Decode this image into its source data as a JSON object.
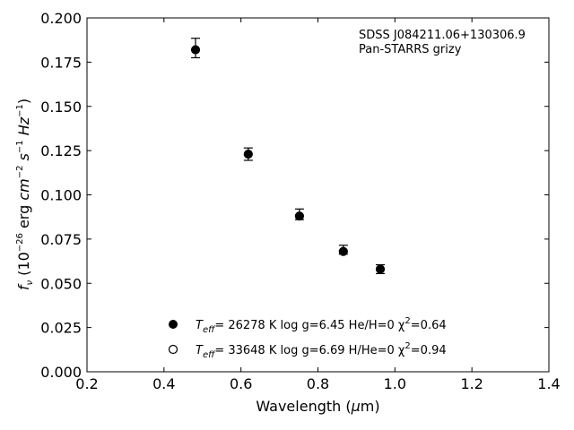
{
  "chart_data": {
    "type": "scatter",
    "xlabel_prefix": "Wavelength (",
    "xlabel_mu": "μ",
    "xlabel_suffix": "m)",
    "ylabel": {
      "f": "f",
      "nu": "ν",
      "open": " (10",
      "exp1": "−26",
      "erg": " erg ",
      "cm": "cm",
      "exp2": "−2",
      "s": " s",
      "exp3": "−1",
      "hz": " Hz",
      "exp4": "−1",
      "close": ")"
    },
    "xlim": [
      0.2,
      1.4
    ],
    "ylim": [
      0.0,
      0.2
    ],
    "xticks": [
      "0.2",
      "0.4",
      "0.6",
      "0.8",
      "1.0",
      "1.2",
      "1.4"
    ],
    "xtick_values": [
      0.2,
      0.4,
      0.6,
      0.8,
      1.0,
      1.2,
      1.4
    ],
    "yticks": [
      "0.000",
      "0.025",
      "0.050",
      "0.075",
      "0.100",
      "0.125",
      "0.150",
      "0.175",
      "0.200"
    ],
    "ytick_values": [
      0.0,
      0.025,
      0.05,
      0.075,
      0.1,
      0.125,
      0.15,
      0.175,
      0.2
    ],
    "annotation": [
      "SDSS J084211.06+130306.9",
      "Pan-STARRS grizy"
    ],
    "observed": {
      "x": [
        0.482,
        0.619,
        0.752,
        0.866,
        0.962
      ],
      "y": [
        0.183,
        0.123,
        0.089,
        0.069,
        0.058
      ],
      "yerr": [
        0.0055,
        0.0035,
        0.003,
        0.0025,
        0.0025
      ]
    },
    "series": [
      {
        "marker": "filled",
        "x": [
          0.482,
          0.619,
          0.752,
          0.866,
          0.962
        ],
        "y": [
          0.182,
          0.123,
          0.088,
          0.068,
          0.058
        ],
        "legend": {
          "t": "T",
          "eff": "eff",
          "rest": "= 26278 K  log g=6.45  He/H=0  χ",
          "sq": "2",
          "tail": "=0.64"
        }
      },
      {
        "marker": "open",
        "x": [],
        "y": [],
        "legend": {
          "t": "T",
          "eff": "eff",
          "rest": "= 33648 K  log g=6.69  H/He=0  χ",
          "sq": "2",
          "tail": "=0.94"
        }
      }
    ],
    "legend_position": "lower-center",
    "grid": false
  }
}
